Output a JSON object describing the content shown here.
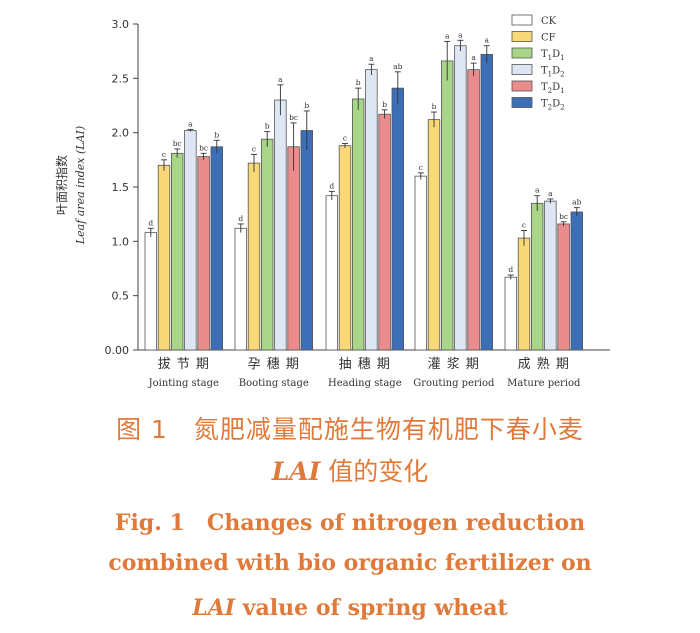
{
  "chart_data": {
    "type": "bar",
    "ylabel_zh": "叶面积指数",
    "ylabel_en": "Leaf area index (LAI)",
    "ylim": [
      0.0,
      3.0
    ],
    "yticks": [
      "0.00",
      "0.5",
      "1.0",
      "1.5",
      "2.0",
      "2.5",
      "3.0"
    ],
    "grid": false,
    "legend_position": "top-right",
    "categories_zh": [
      "拔 节 期",
      "孕 穗 期",
      "抽 穗 期",
      "灌 浆 期",
      "成 熟 期"
    ],
    "categories": [
      "Jointing stage",
      "Booting stage",
      "Heading stage",
      "Grouting period",
      "Mature period"
    ],
    "series": [
      {
        "name": "CK",
        "legend_main": "CK",
        "legend_sub": [
          "",
          ""
        ],
        "color": "#ffffff",
        "values": [
          1.08,
          1.12,
          1.42,
          1.6,
          0.67
        ],
        "errors": [
          0.04,
          0.04,
          0.04,
          0.03,
          0.02
        ],
        "letters": [
          "d",
          "d",
          "d",
          "c",
          "d"
        ]
      },
      {
        "name": "CF",
        "legend_main": "CF",
        "legend_sub": [
          "",
          ""
        ],
        "color": "#f9d877",
        "values": [
          1.7,
          1.72,
          1.88,
          2.12,
          1.03
        ],
        "errors": [
          0.05,
          0.08,
          0.02,
          0.07,
          0.07
        ],
        "letters": [
          "c",
          "c",
          "c",
          "b",
          "c"
        ]
      },
      {
        "name": "T1D1",
        "legend_main": "TD",
        "legend_sub": [
          "1",
          "1"
        ],
        "color": "#a8d588",
        "values": [
          1.81,
          1.94,
          2.31,
          2.66,
          1.35
        ],
        "errors": [
          0.04,
          0.07,
          0.1,
          0.18,
          0.07
        ],
        "letters": [
          "bc",
          "b",
          "b",
          "a",
          "a"
        ]
      },
      {
        "name": "T1D2",
        "legend_main": "TD",
        "legend_sub": [
          "1",
          "2"
        ],
        "color": "#dfe6f3",
        "values": [
          2.02,
          2.3,
          2.58,
          2.8,
          1.37
        ],
        "errors": [
          0.01,
          0.14,
          0.05,
          0.05,
          0.02
        ],
        "letters": [
          "a",
          "a",
          "a",
          "a",
          "a"
        ]
      },
      {
        "name": "T2D1",
        "legend_main": "TD",
        "legend_sub": [
          "2",
          "1"
        ],
        "color": "#ea8c8c",
        "values": [
          1.78,
          1.87,
          2.17,
          2.58,
          1.16
        ],
        "errors": [
          0.03,
          0.22,
          0.04,
          0.06,
          0.02
        ],
        "letters": [
          "bc",
          "bc",
          "b",
          "a",
          "bc"
        ]
      },
      {
        "name": "T2D2",
        "legend_main": "TD",
        "legend_sub": [
          "2",
          "2"
        ],
        "color": "#3d6fb8",
        "values": [
          1.87,
          2.02,
          2.41,
          2.72,
          1.27
        ],
        "errors": [
          0.06,
          0.18,
          0.15,
          0.08,
          0.04
        ],
        "letters": [
          "b",
          "b",
          "ab",
          "a",
          "ab"
        ]
      }
    ]
  },
  "caption": {
    "zh_line1": "图 1　氮肥减量配施生物有机肥下春小麦",
    "zh_line2_italic": "LAI",
    "zh_line2_rest": " 值的变化",
    "en_line1": "Fig. 1　Changes of nitrogen reduction",
    "en_line2": "combined with bio organic fertilizer on",
    "en_line3_italic": "LAI",
    "en_line3_rest": " value of spring wheat"
  }
}
